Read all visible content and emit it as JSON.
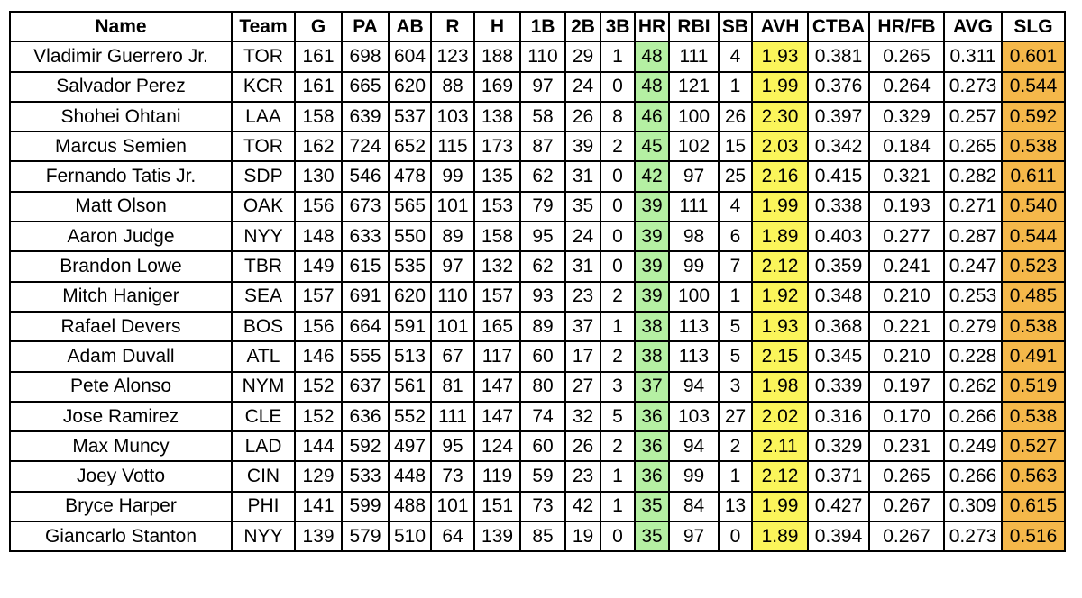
{
  "table": {
    "header": [
      "Name",
      "Team",
      "G",
      "PA",
      "AB",
      "R",
      "H",
      "1B",
      "2B",
      "3B",
      "HR",
      "RBI",
      "SB",
      "AVH",
      "CTBA",
      "HR/FB",
      "AVG",
      "SLG"
    ],
    "rows": [
      [
        "Vladimir Guerrero Jr.",
        "TOR",
        "161",
        "698",
        "604",
        "123",
        "188",
        "110",
        "29",
        "1",
        "48",
        "111",
        "4",
        "1.93",
        "0.381",
        "0.265",
        "0.311",
        "0.601"
      ],
      [
        "Salvador Perez",
        "KCR",
        "161",
        "665",
        "620",
        "88",
        "169",
        "97",
        "24",
        "0",
        "48",
        "121",
        "1",
        "1.99",
        "0.376",
        "0.264",
        "0.273",
        "0.544"
      ],
      [
        "Shohei Ohtani",
        "LAA",
        "158",
        "639",
        "537",
        "103",
        "138",
        "58",
        "26",
        "8",
        "46",
        "100",
        "26",
        "2.30",
        "0.397",
        "0.329",
        "0.257",
        "0.592"
      ],
      [
        "Marcus Semien",
        "TOR",
        "162",
        "724",
        "652",
        "115",
        "173",
        "87",
        "39",
        "2",
        "45",
        "102",
        "15",
        "2.03",
        "0.342",
        "0.184",
        "0.265",
        "0.538"
      ],
      [
        "Fernando Tatis Jr.",
        "SDP",
        "130",
        "546",
        "478",
        "99",
        "135",
        "62",
        "31",
        "0",
        "42",
        "97",
        "25",
        "2.16",
        "0.415",
        "0.321",
        "0.282",
        "0.611"
      ],
      [
        "Matt Olson",
        "OAK",
        "156",
        "673",
        "565",
        "101",
        "153",
        "79",
        "35",
        "0",
        "39",
        "111",
        "4",
        "1.99",
        "0.338",
        "0.193",
        "0.271",
        "0.540"
      ],
      [
        "Aaron Judge",
        "NYY",
        "148",
        "633",
        "550",
        "89",
        "158",
        "95",
        "24",
        "0",
        "39",
        "98",
        "6",
        "1.89",
        "0.403",
        "0.277",
        "0.287",
        "0.544"
      ],
      [
        "Brandon Lowe",
        "TBR",
        "149",
        "615",
        "535",
        "97",
        "132",
        "62",
        "31",
        "0",
        "39",
        "99",
        "7",
        "2.12",
        "0.359",
        "0.241",
        "0.247",
        "0.523"
      ],
      [
        "Mitch Haniger",
        "SEA",
        "157",
        "691",
        "620",
        "110",
        "157",
        "93",
        "23",
        "2",
        "39",
        "100",
        "1",
        "1.92",
        "0.348",
        "0.210",
        "0.253",
        "0.485"
      ],
      [
        "Rafael Devers",
        "BOS",
        "156",
        "664",
        "591",
        "101",
        "165",
        "89",
        "37",
        "1",
        "38",
        "113",
        "5",
        "1.93",
        "0.368",
        "0.221",
        "0.279",
        "0.538"
      ],
      [
        "Adam Duvall",
        "ATL",
        "146",
        "555",
        "513",
        "67",
        "117",
        "60",
        "17",
        "2",
        "38",
        "113",
        "5",
        "2.15",
        "0.345",
        "0.210",
        "0.228",
        "0.491"
      ],
      [
        "Pete Alonso",
        "NYM",
        "152",
        "637",
        "561",
        "81",
        "147",
        "80",
        "27",
        "3",
        "37",
        "94",
        "3",
        "1.98",
        "0.339",
        "0.197",
        "0.262",
        "0.519"
      ],
      [
        "Jose Ramirez",
        "CLE",
        "152",
        "636",
        "552",
        "111",
        "147",
        "74",
        "32",
        "5",
        "36",
        "103",
        "27",
        "2.02",
        "0.316",
        "0.170",
        "0.266",
        "0.538"
      ],
      [
        "Max Muncy",
        "LAD",
        "144",
        "592",
        "497",
        "95",
        "124",
        "60",
        "26",
        "2",
        "36",
        "94",
        "2",
        "2.11",
        "0.329",
        "0.231",
        "0.249",
        "0.527"
      ],
      [
        "Joey Votto",
        "CIN",
        "129",
        "533",
        "448",
        "73",
        "119",
        "59",
        "23",
        "1",
        "36",
        "99",
        "1",
        "2.12",
        "0.371",
        "0.265",
        "0.266",
        "0.563"
      ],
      [
        "Bryce Harper",
        "PHI",
        "141",
        "599",
        "488",
        "101",
        "151",
        "73",
        "42",
        "1",
        "35",
        "84",
        "13",
        "1.99",
        "0.427",
        "0.267",
        "0.309",
        "0.615"
      ],
      [
        "Giancarlo Stanton",
        "NYY",
        "139",
        "579",
        "510",
        "64",
        "139",
        "85",
        "19",
        "0",
        "35",
        "97",
        "0",
        "1.89",
        "0.394",
        "0.267",
        "0.273",
        "0.516"
      ]
    ]
  }
}
